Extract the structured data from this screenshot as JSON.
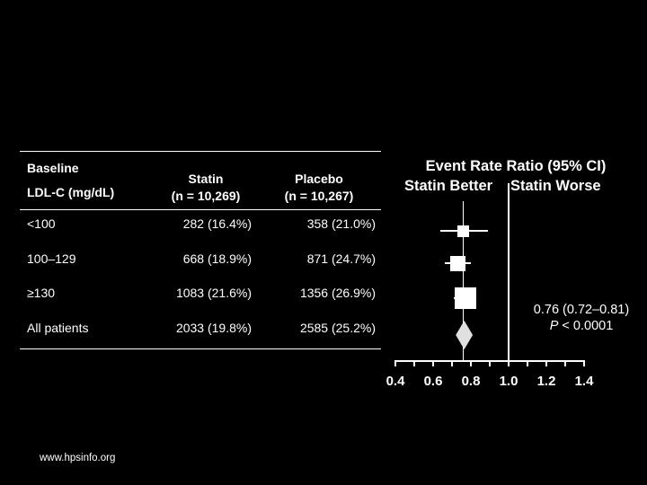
{
  "slide": {
    "footer": "www.hpsinfo.org"
  },
  "table": {
    "header": {
      "col1_line1": "Baseline",
      "col1_line2": "LDL-C (mg/dL)",
      "col2_line1": "Statin",
      "col2_line2": "(n = 10,269)",
      "col3_line1": "Placebo",
      "col3_line2": "(n = 10,267)"
    },
    "rows": [
      {
        "label": "<100",
        "statin": "282 (16.4%)",
        "placebo": "358 (21.0%)"
      },
      {
        "label": "100–129",
        "statin": "668 (18.9%)",
        "placebo": "871 (24.7%)"
      },
      {
        "label": "≥130",
        "statin": "1083 (21.6%)",
        "placebo": "1356 (26.9%)"
      },
      {
        "label": "All patients",
        "statin": "2033 (19.8%)",
        "placebo": "2585 (25.2%)"
      }
    ]
  },
  "forest": {
    "title": "Event Rate Ratio (95% CI)",
    "left_label": "Statin Better",
    "right_label": "Statin Worse",
    "annotation": "0.76 (0.72–0.81)",
    "p_label": "P",
    "p_rest": " < 0.0001"
  },
  "colors": {
    "background": "#000000",
    "text": "#ffffff",
    "diamond": "#e0e0e0"
  },
  "chart_data": [
    {
      "type": "table",
      "title": "Events by baseline LDL-C",
      "columns": [
        "Baseline LDL-C (mg/dL)",
        "Statin (n = 10,269)",
        "Placebo (n = 10,267)"
      ],
      "rows": [
        [
          "<100",
          "282 (16.4%)",
          "358 (21.0%)"
        ],
        [
          "100–129",
          "668 (18.9%)",
          "871 (24.7%)"
        ],
        [
          "≥130",
          "1083 (21.6%)",
          "1356 (26.9%)"
        ],
        [
          "All patients",
          "2033 (19.8%)",
          "2585 (25.2%)"
        ]
      ]
    },
    {
      "type": "scatter",
      "subtype": "forest-plot",
      "title": "Event Rate Ratio (95% CI)",
      "left_label": "Statin Better",
      "right_label": "Statin Worse",
      "xlim": [
        0.4,
        1.4
      ],
      "tick_step": 0.1,
      "label_ticks": [
        0.4,
        0.6,
        0.8,
        1.0,
        1.2,
        1.4
      ],
      "reference_line": 1.0,
      "overall_line": 0.76,
      "annotation": "0.76 (0.72–0.81)",
      "p_text": "P < 0.0001",
      "series": [
        {
          "label": "<100",
          "ratio": 0.76,
          "ci": [
            0.64,
            0.89
          ],
          "marker": "square",
          "size": 13
        },
        {
          "label": "100–129",
          "ratio": 0.73,
          "ci": [
            0.66,
            0.8
          ],
          "marker": "square",
          "size": 17
        },
        {
          "label": "≥130",
          "ratio": 0.77,
          "ci": [
            0.71,
            0.83
          ],
          "marker": "square",
          "size": 24
        },
        {
          "label": "All patients",
          "ratio": 0.76,
          "ci": [
            0.72,
            0.81
          ],
          "marker": "diamond",
          "size": 19,
          "height": 32
        }
      ]
    }
  ]
}
